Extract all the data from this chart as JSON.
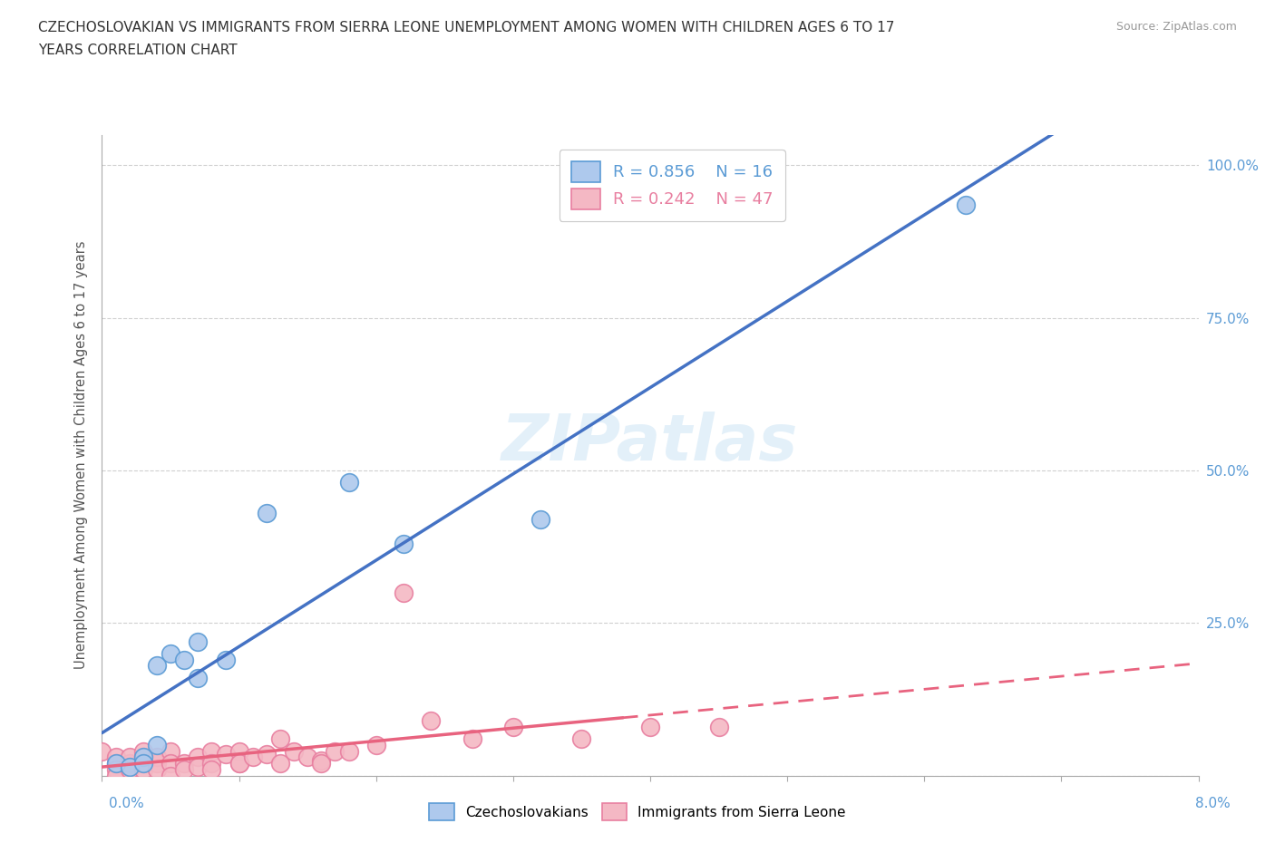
{
  "title_line1": "CZECHOSLOVAKIAN VS IMMIGRANTS FROM SIERRA LEONE UNEMPLOYMENT AMONG WOMEN WITH CHILDREN AGES 6 TO 17",
  "title_line2": "YEARS CORRELATION CHART",
  "source": "Source: ZipAtlas.com",
  "ylabel": "Unemployment Among Women with Children Ages 6 to 17 years",
  "y_ticks": [
    0.0,
    0.25,
    0.5,
    0.75,
    1.0
  ],
  "y_tick_labels": [
    "",
    "25.0%",
    "50.0%",
    "75.0%",
    "100.0%"
  ],
  "watermark": "ZIPatlas",
  "blue_fill": "#aec9ed",
  "blue_edge": "#5b9bd5",
  "pink_fill": "#f4b8c4",
  "pink_edge": "#e87fa0",
  "blue_line_color": "#4472c4",
  "pink_line_color": "#e8637f",
  "blue_scatter": [
    [
      0.001,
      0.02
    ],
    [
      0.002,
      0.015
    ],
    [
      0.003,
      0.03
    ],
    [
      0.003,
      0.02
    ],
    [
      0.004,
      0.05
    ],
    [
      0.004,
      0.18
    ],
    [
      0.005,
      0.2
    ],
    [
      0.006,
      0.19
    ],
    [
      0.007,
      0.16
    ],
    [
      0.007,
      0.22
    ],
    [
      0.009,
      0.19
    ],
    [
      0.012,
      0.43
    ],
    [
      0.018,
      0.48
    ],
    [
      0.022,
      0.38
    ],
    [
      0.032,
      0.42
    ],
    [
      0.063,
      0.935
    ]
  ],
  "pink_scatter": [
    [
      0.0,
      0.04
    ],
    [
      0.001,
      0.02
    ],
    [
      0.001,
      0.03
    ],
    [
      0.001,
      0.01
    ],
    [
      0.001,
      0.0
    ],
    [
      0.002,
      0.02
    ],
    [
      0.002,
      0.03
    ],
    [
      0.002,
      0.01
    ],
    [
      0.003,
      0.03
    ],
    [
      0.003,
      0.02
    ],
    [
      0.003,
      0.04
    ],
    [
      0.003,
      0.01
    ],
    [
      0.004,
      0.02
    ],
    [
      0.004,
      0.03
    ],
    [
      0.004,
      0.01
    ],
    [
      0.005,
      0.04
    ],
    [
      0.005,
      0.02
    ],
    [
      0.005,
      0.0
    ],
    [
      0.006,
      0.02
    ],
    [
      0.006,
      0.01
    ],
    [
      0.007,
      0.03
    ],
    [
      0.007,
      0.015
    ],
    [
      0.008,
      0.04
    ],
    [
      0.008,
      0.02
    ],
    [
      0.008,
      0.01
    ],
    [
      0.009,
      0.035
    ],
    [
      0.01,
      0.04
    ],
    [
      0.01,
      0.02
    ],
    [
      0.01,
      0.02
    ],
    [
      0.011,
      0.03
    ],
    [
      0.012,
      0.035
    ],
    [
      0.013,
      0.06
    ],
    [
      0.013,
      0.02
    ],
    [
      0.014,
      0.04
    ],
    [
      0.015,
      0.03
    ],
    [
      0.016,
      0.025
    ],
    [
      0.016,
      0.02
    ],
    [
      0.017,
      0.04
    ],
    [
      0.018,
      0.04
    ],
    [
      0.02,
      0.05
    ],
    [
      0.022,
      0.3
    ],
    [
      0.024,
      0.09
    ],
    [
      0.027,
      0.06
    ],
    [
      0.03,
      0.08
    ],
    [
      0.035,
      0.06
    ],
    [
      0.04,
      0.08
    ],
    [
      0.045,
      0.08
    ]
  ],
  "xlim": [
    0.0,
    0.08
  ],
  "ylim": [
    -0.05,
    1.05
  ],
  "plot_ylim": [
    0.0,
    1.05
  ]
}
